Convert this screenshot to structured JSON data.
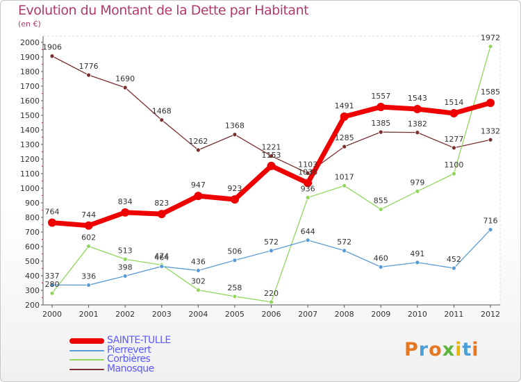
{
  "header": {
    "title": "Evolution du Montant de la Dette par Habitant",
    "unit": "(en €)"
  },
  "brand": {
    "text": "Proxiti",
    "colors": [
      "#e87722",
      "#4a9fd6",
      "#e87722",
      "#5fb33f",
      "#e8b400",
      "#4a9fd6",
      "#e87722"
    ]
  },
  "chart_data": {
    "type": "line",
    "title": "Evolution du Montant de la Dette par Habitant",
    "ylabel": "(en €)",
    "xlabel": "",
    "x": [
      "2000",
      "2001",
      "2002",
      "2003",
      "2004",
      "2005",
      "2006",
      "2007",
      "2008",
      "2009",
      "2010",
      "2011",
      "2012"
    ],
    "ylim": [
      200,
      2000
    ],
    "yticks": [
      200,
      300,
      400,
      500,
      600,
      700,
      800,
      900,
      1000,
      1100,
      1200,
      1300,
      1400,
      1500,
      1600,
      1700,
      1800,
      1900,
      2000
    ],
    "grid": false,
    "legend": "bottom-left",
    "series": [
      {
        "name": "SAINTE-TULLE",
        "color": "#ee0000",
        "values": [
          764,
          744,
          834,
          823,
          947,
          923,
          1153,
          1036,
          1491,
          1557,
          1543,
          1514,
          1585
        ]
      },
      {
        "name": "Pierrevert",
        "color": "#5b9bd5",
        "values": [
          337,
          336,
          398,
          464,
          436,
          506,
          572,
          644,
          572,
          460,
          491,
          452,
          716
        ]
      },
      {
        "name": "Corbières",
        "color": "#8fd65a",
        "values": [
          280,
          602,
          513,
          474,
          302,
          258,
          220,
          936,
          1017,
          855,
          979,
          1100,
          1972
        ]
      },
      {
        "name": "Manosque",
        "color": "#7a2e2e",
        "values": [
          1906,
          1776,
          1690,
          1468,
          1262,
          1368,
          1221,
          1103,
          1285,
          1385,
          1382,
          1277,
          1332
        ]
      }
    ]
  }
}
